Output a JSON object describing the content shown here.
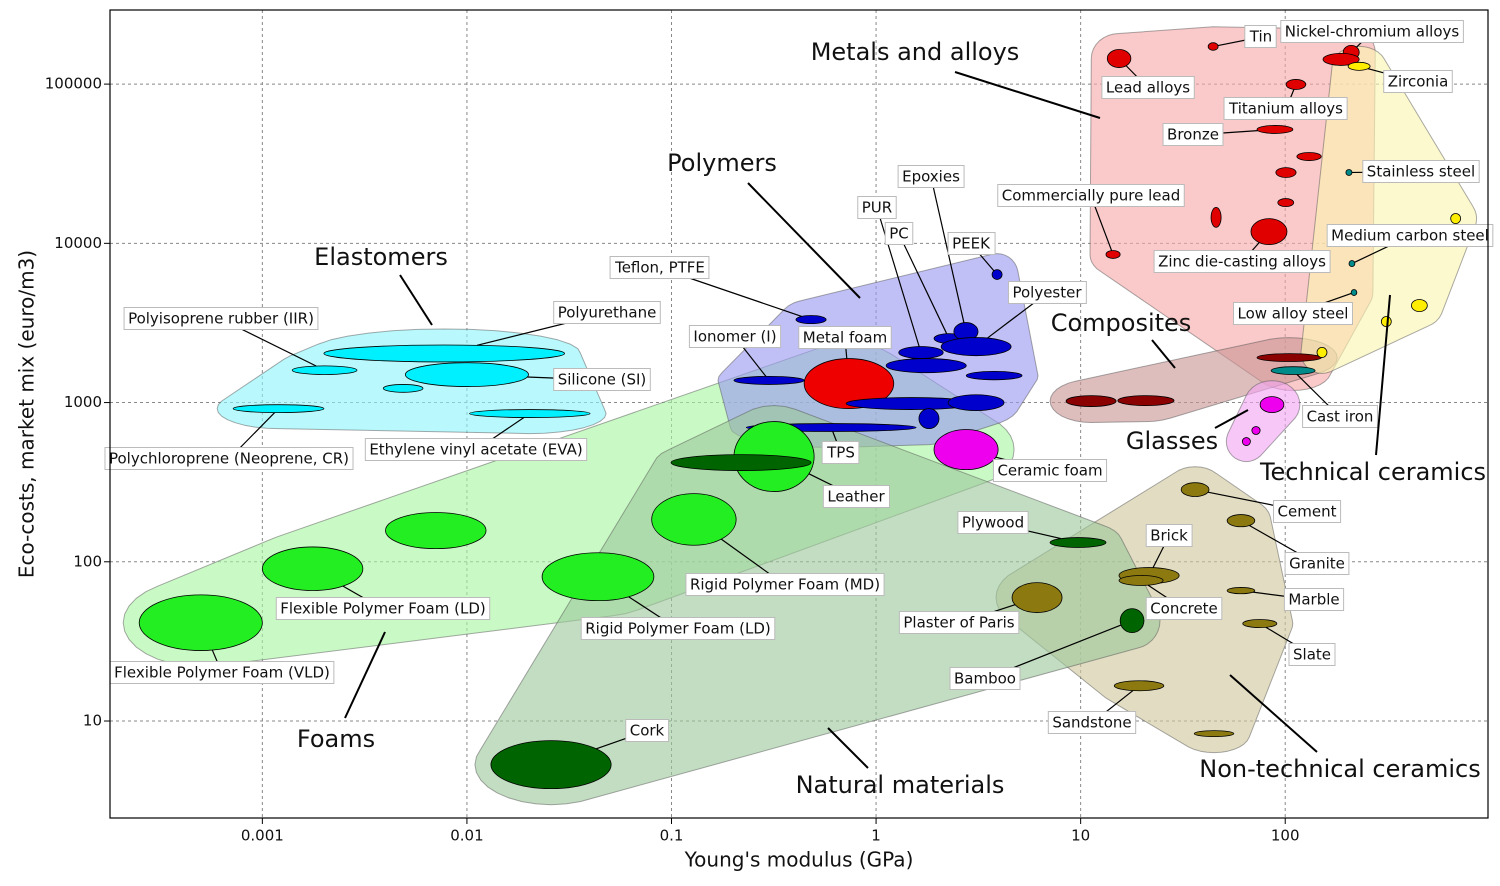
{
  "chart_data": {
    "type": "ashby",
    "xlabel": "Young's modulus (GPa)",
    "ylabel": "Eco-costs, market mix (euro/m3)",
    "x_scale": "log",
    "y_scale": "log",
    "grid": true,
    "xlim": [
      0.00018,
      980
    ],
    "ylim": [
      2.46,
      292000
    ],
    "xticks": [
      0.001,
      0.01,
      0.1,
      1,
      10,
      100
    ],
    "yticks": [
      10,
      100,
      1000,
      10000,
      100000
    ],
    "families": [
      {
        "name": "Elastomers",
        "color": "#00f0ff",
        "envelope": "#8ef6fb",
        "materials": [
          {
            "name": "Polyisoprene rubber (IIR)",
            "x": [
              0.0014,
              0.0029
            ],
            "y": [
              1500,
              1700
            ]
          },
          {
            "name": "Polyurethane",
            "x": [
              0.002,
              0.03
            ],
            "y": [
              1800,
              2300
            ]
          },
          {
            "name": "Silicone (SI)",
            "x": [
              0.005,
              0.02
            ],
            "y": [
              1260,
              1780
            ]
          },
          {
            "name": null,
            "x": [
              0.0039,
              0.0061
            ],
            "y": [
              1160,
              1300
            ]
          },
          {
            "name": "Polychloroprene (Neoprene, CR)",
            "x": [
              0.00072,
              0.002
            ],
            "y": [
              865,
              970
            ]
          },
          {
            "name": "Ethylene vinyl acetate (EVA)",
            "x": [
              0.0103,
              0.04
            ],
            "y": [
              805,
              904
            ]
          }
        ]
      },
      {
        "name": "Foams",
        "color": "#22ee22",
        "envelope": "#a8f5a2",
        "materials": [
          {
            "name": "Flexible Polymer Foam (VLD)",
            "x": [
              0.00025,
              0.001
            ],
            "y": [
              27.7,
              62
            ]
          },
          {
            "name": "Flexible Polymer Foam (LD)",
            "x": [
              0.001,
              0.0031
            ],
            "y": [
              66,
              124
            ]
          },
          {
            "name": null,
            "x": [
              0.004,
              0.0124
            ],
            "y": [
              121,
              204
            ]
          },
          {
            "name": "Rigid Polymer Foam (LD)",
            "x": [
              0.0233,
              0.082
            ],
            "y": [
              57,
              114
            ]
          },
          {
            "name": "Rigid Polymer Foam (MD)",
            "x": [
              0.08,
              0.207
            ],
            "y": [
              127,
              268
            ]
          },
          {
            "name": "Metal foam",
            "x": [
              0.445,
              1.22
            ],
            "y": [
              916,
              1890
            ],
            "color": "#ee0000"
          },
          {
            "name": "Ceramic foam",
            "x": [
              1.92,
              3.95
            ],
            "y": [
              379,
              677
            ],
            "color": "#ee00ee"
          }
        ]
      },
      {
        "name": "Polymers",
        "color": "#0000cc",
        "envelope": "#9a9af0",
        "materials": [
          {
            "name": "Teflon, PTFE",
            "x": [
              0.406,
              0.57
            ],
            "y": [
              3130,
              3520
            ]
          },
          {
            "name": "Ionomer (I)",
            "x": [
              0.202,
              0.445
            ],
            "y": [
              1300,
              1460
            ]
          },
          {
            "name": "PUR",
            "x": [
              1.29,
              2.13
            ],
            "y": [
              1890,
              2250
            ]
          },
          {
            "name": "PC",
            "x": [
              1.92,
              2.69
            ],
            "y": [
              2350,
              2710
            ]
          },
          {
            "name": "Epoxies",
            "x": [
              2.4,
              3.15
            ],
            "y": [
              2450,
              3180
            ]
          },
          {
            "name": "PEEK",
            "x": [
              3.69,
              4.13
            ],
            "y": [
              5930,
              6840
            ]
          },
          {
            "name": "Polyester",
            "x": [
              2.08,
              4.57
            ],
            "y": [
              1970,
              2560
            ]
          },
          {
            "name": "TPS",
            "x": [
              0.232,
              1.57
            ],
            "y": [
              658,
              738
            ]
          },
          {
            "name": null,
            "x": [
              1.12,
              2.76
            ],
            "y": [
              1540,
              1890
            ]
          },
          {
            "name": null,
            "x": [
              0.714,
              3.08
            ],
            "y": [
              904,
              1075
            ]
          },
          {
            "name": null,
            "x": [
              1.62,
              2.03
            ],
            "y": [
              686,
              917
            ]
          },
          {
            "name": null,
            "x": [
              2.25,
              4.22
            ],
            "y": [
              890,
              1120
            ]
          },
          {
            "name": null,
            "x": [
              2.76,
              5.17
            ],
            "y": [
              1390,
              1570
            ]
          }
        ]
      },
      {
        "name": "Metals and alloys",
        "color": "#e00000",
        "envelope": "#f7a8a8",
        "materials": [
          {
            "name": "Lead alloys",
            "x": [
              13.5,
              17.6
            ],
            "y": [
              127000,
              165000
            ]
          },
          {
            "name": "Tin",
            "x": [
              42,
              47
            ],
            "y": [
              163000,
              182000
            ]
          },
          {
            "name": "Nickel-chromium alloys",
            "x": [
              192,
              230
            ],
            "y": [
              143000,
              175000
            ]
          },
          {
            "name": null,
            "x": [
              153,
              230
            ],
            "y": [
              131000,
              156000
            ]
          },
          {
            "name": "Titanium alloys",
            "x": [
              101,
              126
            ],
            "y": [
              92500,
              107000
            ]
          },
          {
            "name": "Bronze",
            "x": [
              72.8,
              109
            ],
            "y": [
              49000,
              55000
            ]
          },
          {
            "name": null,
            "x": [
              114,
              150
            ],
            "y": [
              33100,
              37200
            ]
          },
          {
            "name": null,
            "x": [
              90,
              113
            ],
            "y": [
              25900,
              29900
            ]
          },
          {
            "name": null,
            "x": [
              92,
              110
            ],
            "y": [
              17000,
              19100
            ]
          },
          {
            "name": null,
            "x": [
              43.4,
              48.6
            ],
            "y": [
              12600,
              16800
            ]
          },
          {
            "name": "Commercially pure lead",
            "x": [
              13.3,
              15.6
            ],
            "y": [
              8040,
              9020
            ]
          },
          {
            "name": "Zinc die-casting alloys",
            "x": [
              68,
              102
            ],
            "y": [
              9820,
              14300
            ]
          },
          {
            "name": "Stainless steel",
            "x": [
              198,
              212
            ],
            "y": [
              26700,
              29100
            ],
            "color": "#008b8b"
          },
          {
            "name": "Medium carbon steel",
            "x": [
              205,
              219
            ],
            "y": [
              7140,
              7800
            ],
            "color": "#008b8b"
          },
          {
            "name": "Low alloy steel",
            "x": [
              210,
              224
            ],
            "y": [
              4700,
              5130
            ],
            "color": "#008b8b"
          },
          {
            "name": "Cast iron",
            "x": [
              85.3,
              140
            ],
            "y": [
              1500,
              1680
            ],
            "color": "#008b8b"
          }
        ]
      },
      {
        "name": "Composites",
        "color": "#8b0000",
        "envelope": "#c99595",
        "materials": [
          {
            "name": null,
            "x": [
              8.49,
              14.9
            ],
            "y": [
              944,
              1106
            ]
          },
          {
            "name": null,
            "x": [
              15.2,
              28.6
            ],
            "y": [
              957,
              1106
            ]
          },
          {
            "name": null,
            "x": [
              72.8,
              150
            ],
            "y": [
              1810,
              2030
            ]
          }
        ]
      },
      {
        "name": "Glasses",
        "color": "#ee00ee",
        "envelope": "#f2a6f2",
        "materials": [
          {
            "name": null,
            "x": [
              75.4,
              98.5
            ],
            "y": [
              865,
              1090
            ]
          },
          {
            "name": null,
            "x": [
              68.7,
              75.4
            ],
            "y": [
              630,
              707
            ]
          },
          {
            "name": null,
            "x": [
              61.7,
              67.6
            ],
            "y": [
              537,
              603
            ]
          }
        ]
      },
      {
        "name": "Technical ceramics",
        "color": "#ffee00",
        "envelope": "#fbf5b2",
        "materials": [
          {
            "name": "Zirconia",
            "x": [
              203,
              260
            ],
            "y": [
              122000,
              137000
            ]
          },
          {
            "name": null,
            "x": [
              143,
              160
            ],
            "y": [
              1920,
              2220
            ]
          },
          {
            "name": null,
            "x": [
              295,
              330
            ],
            "y": [
              3000,
              3470
            ]
          },
          {
            "name": null,
            "x": [
              414,
              495
            ],
            "y": [
              3730,
              4440
            ]
          },
          {
            "name": null,
            "x": [
              644,
              720
            ],
            "y": [
              13300,
              15400
            ]
          }
        ]
      },
      {
        "name": "Non-technical ceramics",
        "color": "#8c7a10",
        "envelope": "#d0c89c",
        "materials": [
          {
            "name": "Plaster of Paris",
            "x": [
              4.62,
              8.11
            ],
            "y": [
              48,
              74
            ]
          },
          {
            "name": "Brick",
            "x": [
              15.4,
              30.3
            ],
            "y": [
              73,
              92
            ]
          },
          {
            "name": "Concrete",
            "x": [
              15.4,
              25.3
            ],
            "y": [
              71,
              82
            ]
          },
          {
            "name": "Cement",
            "x": [
              31,
              42.4
            ],
            "y": [
              257,
              314
            ]
          },
          {
            "name": "Granite",
            "x": [
              52,
              71
            ],
            "y": [
              166,
              198
            ]
          },
          {
            "name": "Marble",
            "x": [
              52,
              71
            ],
            "y": [
              63,
              69
            ]
          },
          {
            "name": "Slate",
            "x": [
              62,
              91
            ],
            "y": [
              38.6,
              43.4
            ]
          },
          {
            "name": "Sandstone",
            "x": [
              14.6,
              25.5
            ],
            "y": [
              15.5,
              17.9
            ]
          },
          {
            "name": null,
            "x": [
              35.9,
              56.1
            ],
            "y": [
              7.98,
              8.7
            ]
          }
        ]
      },
      {
        "name": "Natural materials",
        "color": "#006400",
        "envelope": "#9dc89b",
        "materials": [
          {
            "name": "Plywood",
            "x": [
              7.09,
              13.3
            ],
            "y": [
              123,
              142
            ]
          },
          {
            "name": "Cork",
            "x": [
              0.0131,
              0.0507
            ],
            "y": [
              3.76,
              7.53
            ]
          },
          {
            "name": "Bamboo",
            "x": [
              15.6,
              20.4
            ],
            "y": [
              35.9,
              50.8
            ]
          },
          {
            "name": "Leather",
            "x": [
              0.202,
              0.498
            ],
            "y": [
              276,
              760
            ],
            "color": "#22ee22"
          },
          {
            "name": null,
            "x": [
              0.0995,
              0.481
            ],
            "y": [
              374,
              471
            ]
          }
        ]
      }
    ]
  }
}
